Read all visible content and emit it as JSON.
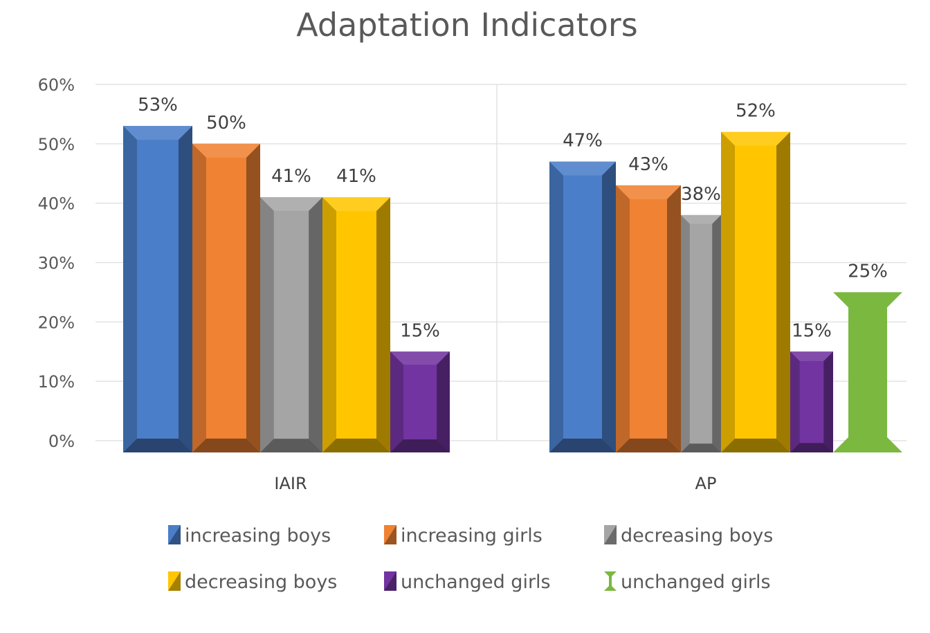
{
  "chart_data": {
    "type": "bar",
    "title": "Adaptation Indicators",
    "xlabel": "",
    "ylabel": "",
    "ylim": [
      0,
      0.6
    ],
    "yticks": [
      "0%",
      "10%",
      "20%",
      "30%",
      "40%",
      "50%",
      "60%"
    ],
    "grid": true,
    "legend_position": "bottom",
    "categories": [
      "IAIR",
      "AP"
    ],
    "series": [
      {
        "name": "increasing boys",
        "color": "#4a7ec9",
        "values": [
          0.53,
          0.47
        ],
        "labels": [
          "53%",
          "47%"
        ]
      },
      {
        "name": "increasing girls",
        "color": "#f08233",
        "values": [
          0.5,
          0.43
        ],
        "labels": [
          "50%",
          "43%"
        ]
      },
      {
        "name": "decreasing boys",
        "color": "#a5a5a5",
        "values": [
          0.41,
          0.38
        ],
        "labels": [
          "41%",
          "38%"
        ]
      },
      {
        "name": "decreasing boys",
        "color": "#ffc600",
        "values": [
          0.41,
          0.52
        ],
        "labels": [
          "41%",
          "52%"
        ]
      },
      {
        "name": "unchanged girls",
        "color": "#7234a0",
        "values": [
          0.15,
          0.15
        ],
        "labels": [
          "15%",
          "15%"
        ]
      },
      {
        "name": "unchanged girls",
        "color": "#7ab840",
        "values": [
          null,
          0.25
        ],
        "labels": [
          null,
          "25%"
        ],
        "shape": "hourglass"
      }
    ]
  }
}
